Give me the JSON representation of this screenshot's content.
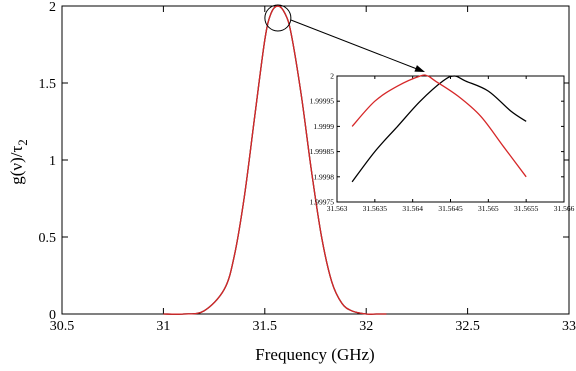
{
  "chart_data": [
    {
      "type": "line",
      "xlabel": "Frequency (GHz)",
      "ylabel": "g(ν)/τ",
      "ylabel_sub": "2",
      "xlim": [
        30.5,
        33
      ],
      "ylim": [
        0,
        2
      ],
      "xticks": [
        30.5,
        31,
        31.5,
        32,
        32.5,
        33
      ],
      "yticks": [
        0,
        0.5,
        1,
        1.5,
        2
      ],
      "xtick_labels": [
        "30.5",
        "31",
        "31.5",
        "32",
        "32.5",
        "33"
      ],
      "ytick_labels": [
        "0",
        "0.5",
        "1",
        "1.5",
        "2"
      ],
      "grid": false,
      "series": [
        {
          "color": "#000000",
          "x": [
            31.0,
            31.1,
            31.2,
            31.3,
            31.35,
            31.4,
            31.45,
            31.5,
            31.53,
            31.5645,
            31.6,
            31.63,
            31.68,
            31.73,
            31.78,
            31.83,
            31.88,
            31.93,
            32.0,
            32.05,
            32.1
          ],
          "y": [
            0.0,
            0.0,
            0.02,
            0.16,
            0.38,
            0.77,
            1.28,
            1.78,
            1.95,
            2.0,
            1.95,
            1.82,
            1.42,
            0.93,
            0.5,
            0.21,
            0.07,
            0.02,
            0.0,
            0.0,
            0.0
          ]
        },
        {
          "color": "#d62728",
          "x": [
            31.0,
            31.1,
            31.2,
            31.3,
            31.35,
            31.4,
            31.45,
            31.5,
            31.53,
            31.5642,
            31.6,
            31.63,
            31.68,
            31.73,
            31.78,
            31.83,
            31.88,
            31.93,
            32.0,
            32.05,
            32.1
          ],
          "y": [
            0.0,
            0.0,
            0.02,
            0.16,
            0.38,
            0.77,
            1.28,
            1.78,
            1.95,
            2.0,
            1.95,
            1.82,
            1.42,
            0.93,
            0.5,
            0.21,
            0.07,
            0.02,
            0.0,
            0.0,
            0.0
          ]
        }
      ]
    },
    {
      "type": "line",
      "role": "inset",
      "xlim": [
        31.563,
        31.566
      ],
      "ylim": [
        1.99975,
        2
      ],
      "xticks": [
        31.563,
        31.5635,
        31.564,
        31.5645,
        31.565,
        31.5655,
        31.566
      ],
      "yticks": [
        1.99975,
        1.9998,
        1.99985,
        1.9999,
        1.99995,
        2
      ],
      "xtick_labels": [
        "31.563",
        "31.5635",
        "31.564",
        "31.5645",
        "31.565",
        "31.5655",
        "31.566"
      ],
      "ytick_labels": [
        "1.99975",
        "1.9998",
        "1.99985",
        "1.9999",
        "1.99995",
        "2"
      ],
      "grid": false,
      "series": [
        {
          "color": "#000000",
          "x": [
            31.5632,
            31.5635,
            31.5638,
            31.5641,
            31.5644,
            31.56455,
            31.5647,
            31.565,
            31.5653,
            31.5655
          ],
          "y": [
            1.99979,
            1.99985,
            1.9999,
            1.99995,
            1.99999,
            2.0,
            1.99999,
            1.99997,
            1.99993,
            1.99991
          ]
        },
        {
          "color": "#d62728",
          "x": [
            31.5632,
            31.5635,
            31.5638,
            31.5641,
            31.5642,
            31.5643,
            31.5646,
            31.5649,
            31.5652,
            31.5655
          ],
          "y": [
            1.9999,
            1.99995,
            1.99998,
            2.0,
            2.0,
            1.99999,
            1.99996,
            1.99992,
            1.99986,
            1.9998
          ]
        }
      ]
    }
  ],
  "colors": {
    "primary": "#000000",
    "secondary": "#d62728"
  }
}
